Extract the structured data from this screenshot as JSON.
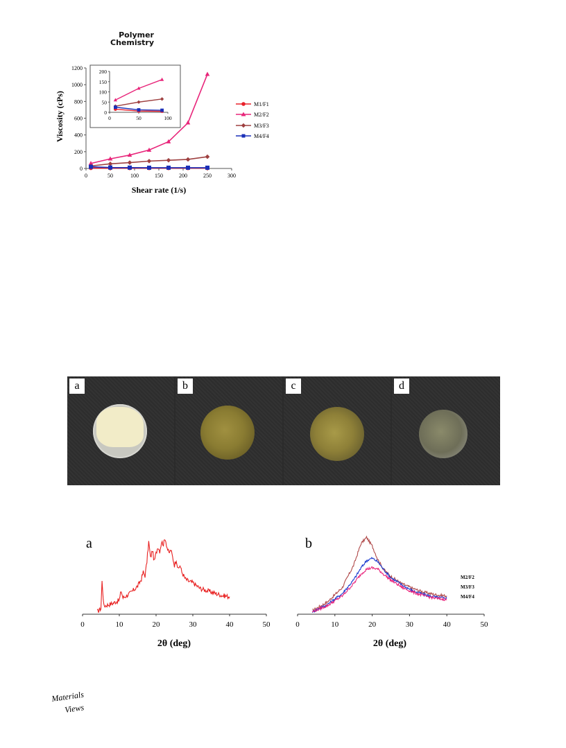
{
  "journal": {
    "line1": "Polymer",
    "line2": "Chemistry"
  },
  "viscosity_chart": {
    "ylabel": "Viscosity (cPs)",
    "xlabel": "Shear rate (1/s)",
    "legend": [
      "M1/F1",
      "M2/F2",
      "M3/F3",
      "M4/F4"
    ]
  },
  "photo_panels": [
    "a",
    "b",
    "c",
    "d"
  ],
  "xrd": {
    "panel_a_label": "a",
    "panel_b_label": "b",
    "xlabel": "2θ (deg)",
    "series_labels": [
      "M2/F2",
      "M3/F3",
      "M4/F4"
    ]
  },
  "logo_text": {
    "line1": "Materials",
    "line2": "Views"
  },
  "chart_data": [
    {
      "type": "line",
      "xlabel": "Shear rate (1/s)",
      "ylabel": "Viscosity (cPs)",
      "xlim": [
        0,
        300
      ],
      "ylim": [
        0,
        1200
      ],
      "xticks": [
        0,
        50,
        100,
        150,
        200,
        250,
        300
      ],
      "yticks": [
        0,
        200,
        400,
        600,
        800,
        1000,
        1200
      ],
      "legend_position": "right",
      "series": [
        {
          "name": "M1/F1",
          "color": "#e8202a",
          "marker": "circle",
          "x": [
            10,
            50,
            90,
            130,
            170,
            210,
            250
          ],
          "y": [
            5,
            4,
            4,
            4,
            4,
            4,
            4
          ]
        },
        {
          "name": "M2/F2",
          "color": "#e8257a",
          "marker": "triangle",
          "x": [
            10,
            50,
            90,
            130,
            170,
            210,
            250
          ],
          "y": [
            60,
            115,
            160,
            220,
            320,
            545,
            1125
          ]
        },
        {
          "name": "M3/F3",
          "color": "#9e4040",
          "marker": "diamond",
          "x": [
            10,
            50,
            90,
            130,
            170,
            210,
            250
          ],
          "y": [
            30,
            55,
            70,
            88,
            98,
            108,
            140
          ]
        },
        {
          "name": "M4/F4",
          "color": "#1a2fb8",
          "marker": "square",
          "x": [
            10,
            50,
            90,
            130,
            170,
            210,
            250
          ],
          "y": [
            20,
            11,
            10,
            9,
            9,
            9,
            9
          ]
        }
      ],
      "inset": {
        "xlim": [
          0,
          100
        ],
        "ylim": [
          0,
          200
        ],
        "xticks": [
          0,
          50,
          100
        ],
        "yticks": [
          0,
          50,
          100,
          150,
          200
        ],
        "series": [
          {
            "name": "M1/F1",
            "x": [
              10,
              50,
              90
            ],
            "y": [
              15,
              6,
              5
            ]
          },
          {
            "name": "M2/F2",
            "x": [
              10,
              50,
              90
            ],
            "y": [
              60,
              117,
              160
            ]
          },
          {
            "name": "M3/F3",
            "x": [
              10,
              50,
              90
            ],
            "y": [
              30,
              50,
              65
            ]
          },
          {
            "name": "M4/F4",
            "x": [
              10,
              50,
              90
            ],
            "y": [
              25,
              12,
              10
            ]
          }
        ]
      }
    },
    {
      "type": "line",
      "panel": "a",
      "xlabel": "2θ (deg)",
      "xlim": [
        0,
        50
      ],
      "xticks": [
        0,
        10,
        20,
        30,
        40,
        50
      ],
      "series": [
        {
          "color": "#e82020",
          "x": [
            4,
            5,
            5.3,
            5.8,
            8,
            10,
            10.5,
            11,
            13,
            15,
            16,
            16.5,
            17,
            17.5,
            18,
            18.5,
            19,
            19.5,
            20,
            20.5,
            21,
            21.5,
            22,
            22.5,
            23,
            23.5,
            24,
            24.5,
            25,
            25.5,
            26,
            26.5,
            27,
            28,
            29,
            30,
            32,
            34,
            36,
            38,
            40
          ],
          "y": [
            2,
            5,
            28,
            7,
            9,
            12,
            20,
            14,
            18,
            24,
            30,
            36,
            33,
            45,
            62,
            48,
            55,
            45,
            52,
            58,
            54,
            62,
            60,
            65,
            57,
            52,
            55,
            49,
            42,
            47,
            38,
            42,
            36,
            30,
            28,
            27,
            22,
            20,
            18,
            16,
            15
          ]
        }
      ]
    },
    {
      "type": "line",
      "panel": "b",
      "xlabel": "2θ (deg)",
      "xlim": [
        0,
        50
      ],
      "xticks": [
        0,
        10,
        20,
        30,
        40,
        50
      ],
      "series": [
        {
          "name": "M2/F2",
          "color": "#b04a4a",
          "x": [
            4,
            8,
            12,
            15,
            17,
            18.5,
            20,
            21.5,
            23,
            25,
            28,
            31,
            34,
            37,
            40
          ],
          "y": [
            3,
            10,
            22,
            40,
            58,
            63,
            56,
            45,
            37,
            31,
            25,
            21,
            18,
            16,
            15
          ]
        },
        {
          "name": "M3/F3",
          "color": "#1a3ad0",
          "x": [
            4,
            8,
            12,
            15,
            17,
            18.5,
            20,
            21.5,
            23,
            25,
            28,
            31,
            34,
            37,
            40
          ],
          "y": [
            2,
            8,
            17,
            28,
            38,
            44,
            46,
            43,
            37,
            30,
            24,
            19,
            16,
            14,
            13
          ]
        },
        {
          "name": "M4/F4",
          "color": "#e8207a",
          "x": [
            4,
            8,
            12,
            15,
            17,
            18.5,
            20,
            21.5,
            23,
            25,
            28,
            31,
            34,
            37,
            40
          ],
          "y": [
            2,
            7,
            15,
            25,
            33,
            37,
            38,
            37,
            33,
            28,
            22,
            18,
            15,
            13,
            12
          ]
        }
      ]
    }
  ]
}
